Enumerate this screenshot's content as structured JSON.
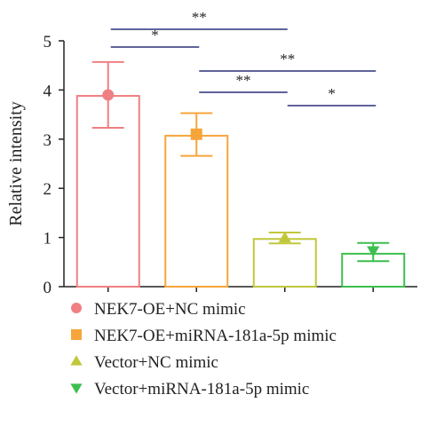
{
  "chart_data": {
    "type": "bar",
    "ylabel": "Relative intensity",
    "xlabel": "",
    "ylim": [
      0,
      5
    ],
    "yticks": [
      0,
      1,
      2,
      3,
      4,
      5
    ],
    "grid": false,
    "legend_position": "bottom",
    "series": [
      {
        "name": "NEK7-OE+NC mimic",
        "mean": 3.88,
        "point": 3.9,
        "err_low": 3.23,
        "err_high": 4.57,
        "color": "#f07f83",
        "marker": "circle"
      },
      {
        "name": "NEK7-OE+miRNA-181a-5p mimic",
        "mean": 3.07,
        "point": 3.1,
        "err_low": 2.66,
        "err_high": 3.53,
        "color": "#f6a53b",
        "marker": "square"
      },
      {
        "name": "Vector+NC mimic",
        "mean": 0.97,
        "point": 0.99,
        "err_low": 0.88,
        "err_high": 1.1,
        "color": "#c1c73a",
        "marker": "triangle-up"
      },
      {
        "name": "Vector+miRNA-181a-5p mimic",
        "mean": 0.67,
        "point": 0.73,
        "err_low": 0.52,
        "err_high": 0.89,
        "color": "#3cbf4e",
        "marker": "triangle-down"
      }
    ],
    "significance": [
      {
        "from": 0,
        "to": 2,
        "label": "**"
      },
      {
        "from": 0,
        "to": 1,
        "label": "*"
      },
      {
        "from": 1,
        "to": 3,
        "label": "**"
      },
      {
        "from": 1,
        "to": 2,
        "label": "**"
      },
      {
        "from": 2,
        "to": 3,
        "label": "*"
      }
    ],
    "sig_line_color": "#2b2f7a"
  }
}
